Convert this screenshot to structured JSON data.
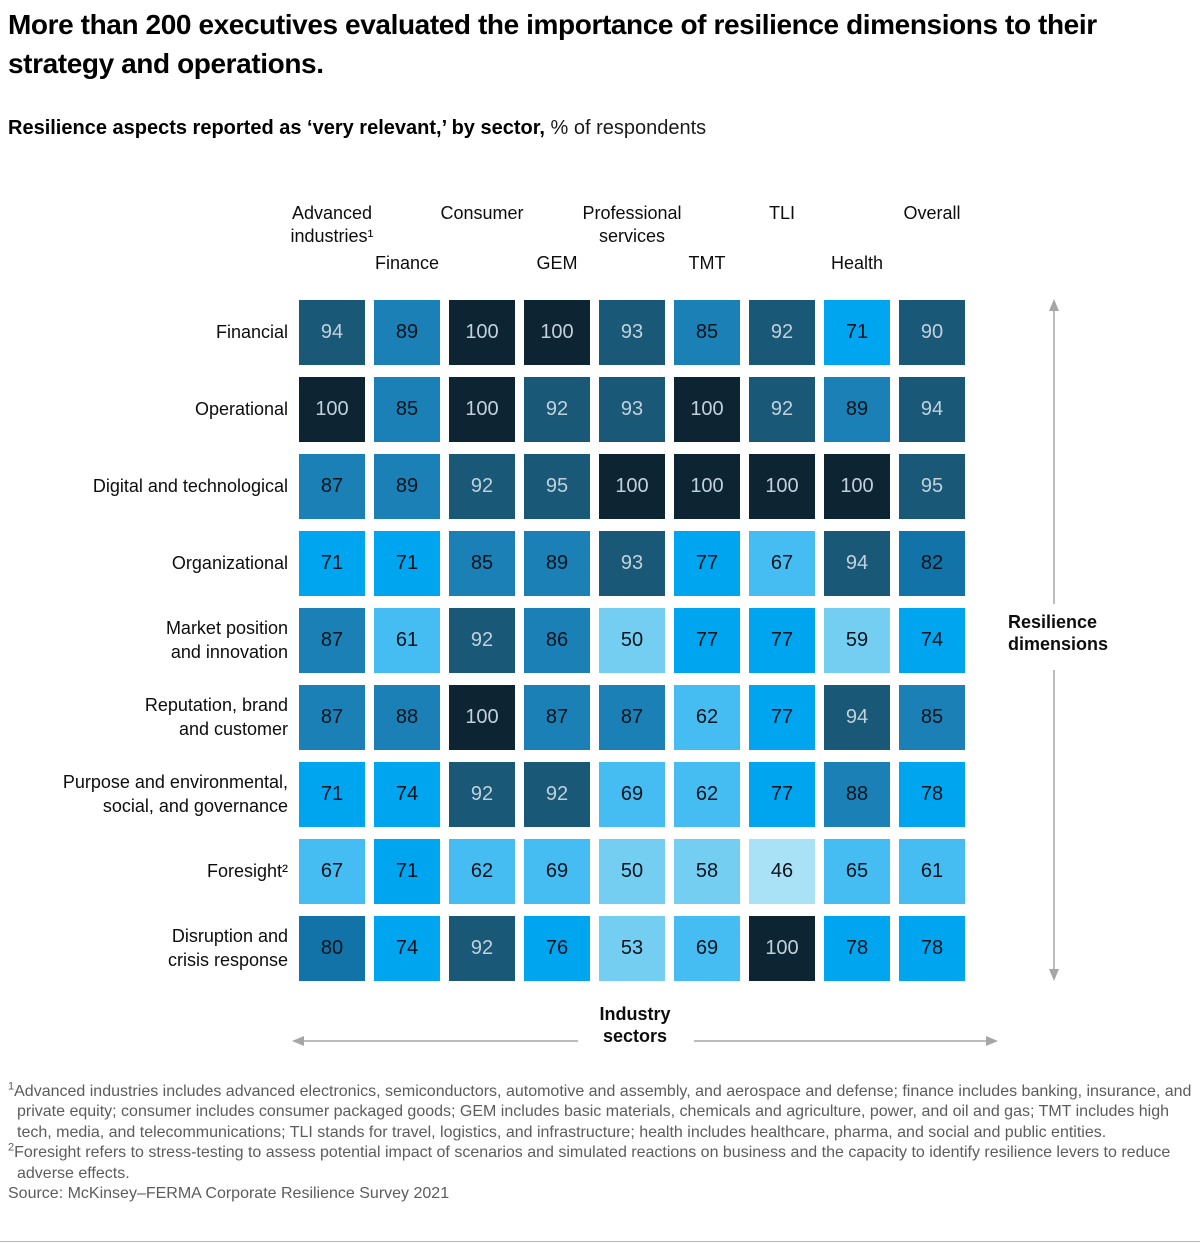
{
  "header": {
    "title": "More than 200 executives evaluated the importance of resilience dimensions to their strategy and operations.",
    "subtitle_bold": "Resilience aspects reported as ‘very relevant,’ by sector,",
    "subtitle_regular": " % of respondents"
  },
  "axes": {
    "y_label": "Resilience\ndimensions",
    "x_label": "Industry\nsectors"
  },
  "chart_data": {
    "type": "heatmap",
    "title": "Resilience aspects reported as ‘very relevant,’ by sector",
    "unit": "% of respondents",
    "columns": [
      "Advanced\nindustries¹",
      "Finance",
      "Consumer",
      "GEM",
      "Professional\nservices",
      "TMT",
      "TLI",
      "Health",
      "Overall"
    ],
    "rows": [
      "Financial",
      "Operational",
      "Digital and technological",
      "Organizational",
      "Market position\nand innovation",
      "Reputation, brand\nand customer",
      "Purpose and environmental,\nsocial, and governance",
      "Foresight²",
      "Disruption and\ncrisis response"
    ],
    "values": [
      [
        94,
        89,
        100,
        100,
        93,
        85,
        92,
        71,
        90
      ],
      [
        100,
        85,
        100,
        92,
        93,
        100,
        92,
        89,
        94
      ],
      [
        87,
        89,
        92,
        95,
        100,
        100,
        100,
        100,
        95
      ],
      [
        71,
        71,
        85,
        89,
        93,
        77,
        67,
        94,
        82
      ],
      [
        87,
        61,
        92,
        86,
        50,
        77,
        77,
        59,
        74
      ],
      [
        87,
        88,
        100,
        87,
        87,
        62,
        77,
        94,
        85
      ],
      [
        71,
        74,
        92,
        92,
        69,
        62,
        77,
        88,
        78
      ],
      [
        67,
        71,
        62,
        69,
        50,
        58,
        46,
        65,
        61
      ],
      [
        80,
        74,
        92,
        76,
        53,
        69,
        100,
        78,
        78
      ]
    ],
    "value_range": [
      46,
      100
    ],
    "legend": "none",
    "grid": "off",
    "color_scale": {
      "bins": [
        {
          "min": 100,
          "bg": "#0D2433",
          "fg": "light"
        },
        {
          "min": 90,
          "bg": "#1A5878",
          "fg": "light"
        },
        {
          "min": 85,
          "bg": "#1A80B6",
          "fg": "dark"
        },
        {
          "min": 80,
          "bg": "#1173A8",
          "fg": "dark"
        },
        {
          "min": 70,
          "bg": "#00A5F0",
          "fg": "dark"
        },
        {
          "min": 60,
          "bg": "#45BCF2",
          "fg": "dark"
        },
        {
          "min": 50,
          "bg": "#73CEF2",
          "fg": "dark"
        },
        {
          "min": 0,
          "bg": "#A9E2F6",
          "fg": "dark"
        }
      ],
      "light_text": "#C1D1DB",
      "dark_text": "#08131B"
    }
  },
  "arrow_color": "#a6a6a6",
  "footnotes": [
    {
      "marker": "1",
      "text": "Advanced industries includes advanced electronics, semiconductors, automotive and assembly, and aerospace and defense; finance includes banking, insurance, and private equity; consumer includes consumer packaged goods; GEM includes basic materials, chemicals and agriculture, power, and oil and gas; TMT includes high tech, media, and telecommunications; TLI stands for travel, logistics, and infrastructure; health includes healthcare, pharma, and social and public entities."
    },
    {
      "marker": "2",
      "text": "Foresight refers to stress-testing to assess potential impact of scenarios and simulated reactions on business and the capacity to identify resilience levers to reduce adverse effects."
    },
    {
      "marker": "",
      "text": "Source: McKinsey–FERMA Corporate Resilience Survey 2021"
    }
  ]
}
